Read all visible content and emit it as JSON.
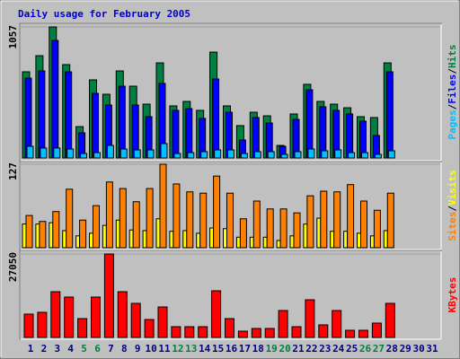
{
  "chart_data": [
    {
      "type": "bar",
      "title": "Daily usage for February 2005",
      "categories": [
        1,
        2,
        3,
        4,
        5,
        6,
        7,
        8,
        9,
        10,
        11,
        12,
        13,
        14,
        15,
        16,
        17,
        18,
        19,
        20,
        21,
        22,
        23,
        24,
        25,
        26,
        27,
        28,
        29,
        30,
        31
      ],
      "category_colors": [
        "#000080",
        "#000080",
        "#000080",
        "#000080",
        "#008040",
        "#008040",
        "#000080",
        "#000080",
        "#000080",
        "#000080",
        "#000080",
        "#008040",
        "#008040",
        "#000080",
        "#000080",
        "#000080",
        "#000080",
        "#000080",
        "#008040",
        "#008040",
        "#000080",
        "#000080",
        "#000080",
        "#000080",
        "#000080",
        "#008040",
        "#008040",
        "#000080",
        "#000080",
        "#000080",
        "#000080"
      ],
      "ylim": [
        0,
        1057
      ],
      "yticks": [
        1057
      ],
      "legend_separator": "/",
      "series": [
        {
          "name": "Hits",
          "color": "#008040",
          "values": [
            695,
            825,
            1057,
            753,
            253,
            630,
            514,
            702,
            579,
            434,
            767,
            420,
            456,
            384,
            854,
            420,
            261,
            369,
            340,
            101,
            355,
            594,
            456,
            434,
            405,
            333,
            326,
            767,
            null,
            null,
            null
          ]
        },
        {
          "name": "Files",
          "color": "#0000ff",
          "values": [
            644,
            702,
            948,
            695,
            203,
            521,
            427,
            579,
            427,
            333,
            601,
            384,
            398,
            319,
            637,
            369,
            145,
            326,
            282,
            94,
            311,
            550,
            413,
            384,
            355,
            297,
            181,
            695,
            null,
            null,
            null
          ]
        },
        {
          "name": "Pages",
          "color": "#00c0ff",
          "values": [
            94,
            80,
            80,
            72,
            36,
            43,
            101,
            72,
            65,
            65,
            116,
            36,
            43,
            51,
            65,
            65,
            36,
            51,
            51,
            29,
            51,
            72,
            58,
            65,
            43,
            43,
            29,
            58,
            null,
            null,
            null
          ]
        }
      ]
    },
    {
      "type": "bar",
      "ylim": [
        0,
        127
      ],
      "yticks": [
        127
      ],
      "series": [
        {
          "name": "Visits",
          "color": "#ffff00",
          "values": [
            36,
            36,
            38,
            26,
            18,
            22,
            34,
            42,
            27,
            26,
            44,
            25,
            26,
            22,
            30,
            29,
            16,
            16,
            16,
            11,
            18,
            36,
            45,
            25,
            25,
            22,
            18,
            26,
            null,
            null,
            null
          ]
        },
        {
          "name": "Sites",
          "color": "#ff8000",
          "values": [
            49,
            40,
            55,
            89,
            42,
            64,
            100,
            90,
            70,
            90,
            127,
            97,
            85,
            83,
            109,
            83,
            44,
            71,
            59,
            59,
            53,
            79,
            86,
            85,
            96,
            71,
            57,
            83,
            null,
            null,
            null
          ]
        }
      ]
    },
    {
      "type": "bar",
      "ylim": [
        0,
        27050
      ],
      "yticks": [
        27050
      ],
      "series": [
        {
          "name": "KBytes",
          "color": "#ff0000",
          "values": [
            7562,
            8144,
            14834,
            13089,
            6108,
            13089,
            27050,
            14834,
            11052,
            5817,
            9889,
            3490,
            3490,
            3490,
            15124,
            6108,
            2036,
            2909,
            2909,
            8726,
            3490,
            12216,
            4072,
            8726,
            2327,
            2327,
            4654,
            11052,
            null,
            null,
            null
          ]
        }
      ]
    }
  ]
}
